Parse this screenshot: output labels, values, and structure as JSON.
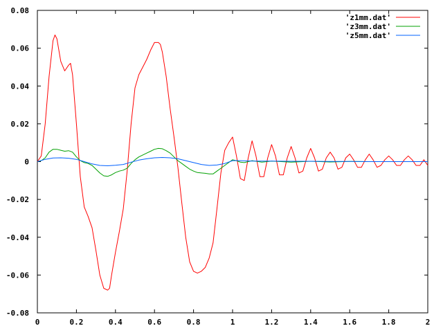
{
  "chart_data": {
    "type": "line",
    "title": "",
    "xlabel": "",
    "ylabel": "",
    "xlim": [
      0,
      2
    ],
    "ylim": [
      -0.08,
      0.08
    ],
    "grid": false,
    "legend_position": "top-right",
    "x_ticks": [
      {
        "value": 0,
        "label": "0"
      },
      {
        "value": 0.2,
        "label": "0.2"
      },
      {
        "value": 0.4,
        "label": "0.4"
      },
      {
        "value": 0.6,
        "label": "0.6"
      },
      {
        "value": 0.8,
        "label": "0.8"
      },
      {
        "value": 1,
        "label": "1"
      },
      {
        "value": 1.2,
        "label": "1.2"
      },
      {
        "value": 1.4,
        "label": "1.4"
      },
      {
        "value": 1.6,
        "label": "1.6"
      },
      {
        "value": 1.8,
        "label": "1.8"
      },
      {
        "value": 2,
        "label": "2"
      }
    ],
    "y_ticks": [
      {
        "value": 0.08,
        "label": "0.08"
      },
      {
        "value": 0.06,
        "label": "0.06"
      },
      {
        "value": 0.04,
        "label": "0.04"
      },
      {
        "value": 0.02,
        "label": "0.02"
      },
      {
        "value": 0,
        "label": "0"
      },
      {
        "value": -0.02,
        "label": "-0.02"
      },
      {
        "value": -0.04,
        "label": "-0.04"
      },
      {
        "value": -0.06,
        "label": "-0.06"
      },
      {
        "value": -0.08,
        "label": "-0.08"
      }
    ],
    "series": [
      {
        "name": "'z1mm.dat'",
        "color": "#ff0000",
        "x": [
          0,
          0.02,
          0.04,
          0.06,
          0.08,
          0.09,
          0.1,
          0.12,
          0.14,
          0.16,
          0.17,
          0.18,
          0.2,
          0.22,
          0.24,
          0.26,
          0.28,
          0.3,
          0.32,
          0.34,
          0.36,
          0.37,
          0.38,
          0.4,
          0.42,
          0.44,
          0.46,
          0.48,
          0.5,
          0.52,
          0.54,
          0.56,
          0.58,
          0.6,
          0.62,
          0.63,
          0.64,
          0.66,
          0.68,
          0.7,
          0.72,
          0.74,
          0.76,
          0.78,
          0.8,
          0.82,
          0.84,
          0.86,
          0.88,
          0.9,
          0.92,
          0.94,
          0.96,
          0.98,
          1.0,
          1.02,
          1.04,
          1.06,
          1.08,
          1.1,
          1.12,
          1.14,
          1.16,
          1.18,
          1.2,
          1.22,
          1.24,
          1.26,
          1.28,
          1.3,
          1.32,
          1.34,
          1.36,
          1.38,
          1.4,
          1.42,
          1.44,
          1.46,
          1.48,
          1.5,
          1.52,
          1.54,
          1.56,
          1.58,
          1.6,
          1.62,
          1.64,
          1.66,
          1.68,
          1.7,
          1.72,
          1.74,
          1.76,
          1.78,
          1.8,
          1.82,
          1.84,
          1.86,
          1.88,
          1.9,
          1.92,
          1.94,
          1.96,
          1.98,
          2.0
        ],
        "y": [
          0,
          0.003,
          0.02,
          0.045,
          0.064,
          0.067,
          0.065,
          0.053,
          0.048,
          0.051,
          0.052,
          0.046,
          0.02,
          -0.008,
          -0.024,
          -0.029,
          -0.035,
          -0.047,
          -0.06,
          -0.067,
          -0.068,
          -0.067,
          -0.06,
          -0.048,
          -0.037,
          -0.025,
          -0.005,
          0.02,
          0.039,
          0.046,
          0.05,
          0.054,
          0.059,
          0.063,
          0.063,
          0.062,
          0.058,
          0.045,
          0.028,
          0.013,
          -0.003,
          -0.022,
          -0.04,
          -0.053,
          -0.058,
          -0.059,
          -0.058,
          -0.056,
          -0.051,
          -0.043,
          -0.025,
          -0.006,
          0.006,
          0.01,
          0.013,
          0.003,
          -0.009,
          -0.01,
          0.002,
          0.011,
          0.003,
          -0.008,
          -0.008,
          0.002,
          0.009,
          0.003,
          -0.007,
          -0.007,
          0.002,
          0.008,
          0.002,
          -0.006,
          -0.005,
          0.002,
          0.007,
          0.002,
          -0.005,
          -0.004,
          0.002,
          0.005,
          0.002,
          -0.004,
          -0.003,
          0.002,
          0.004,
          0.001,
          -0.003,
          -0.003,
          0.001,
          0.004,
          0.001,
          -0.003,
          -0.002,
          0.001,
          0.003,
          0.001,
          -0.002,
          -0.002,
          0.001,
          0.003,
          0.001,
          -0.002,
          -0.002,
          0.001,
          -0.002
        ]
      },
      {
        "name": "'z3mm.dat'",
        "color": "#00a000",
        "x": [
          0,
          0.02,
          0.04,
          0.06,
          0.08,
          0.1,
          0.12,
          0.14,
          0.16,
          0.18,
          0.2,
          0.22,
          0.24,
          0.26,
          0.28,
          0.3,
          0.32,
          0.34,
          0.36,
          0.38,
          0.4,
          0.42,
          0.44,
          0.46,
          0.48,
          0.5,
          0.52,
          0.54,
          0.56,
          0.58,
          0.6,
          0.62,
          0.64,
          0.66,
          0.68,
          0.7,
          0.72,
          0.74,
          0.76,
          0.78,
          0.8,
          0.82,
          0.84,
          0.86,
          0.88,
          0.9,
          0.92,
          0.94,
          0.96,
          0.98,
          1.0,
          1.02,
          1.04,
          1.06,
          1.1,
          1.15,
          1.2,
          1.3,
          1.4,
          1.5,
          1.6,
          1.7,
          1.8,
          1.9,
          2.0
        ],
        "y": [
          0,
          0.0005,
          0.002,
          0.005,
          0.0065,
          0.0065,
          0.006,
          0.0055,
          0.0058,
          0.005,
          0.0025,
          0.0005,
          -0.0005,
          -0.001,
          -0.002,
          -0.004,
          -0.006,
          -0.0075,
          -0.0078,
          -0.007,
          -0.0058,
          -0.005,
          -0.0045,
          -0.0035,
          -0.001,
          0.001,
          0.0025,
          0.0035,
          0.0045,
          0.0055,
          0.0065,
          0.007,
          0.0068,
          0.0058,
          0.0045,
          0.0025,
          0.0005,
          -0.001,
          -0.0025,
          -0.004,
          -0.005,
          -0.0058,
          -0.006,
          -0.0062,
          -0.0065,
          -0.0065,
          -0.005,
          -0.0035,
          -0.002,
          -0.0005,
          0.001,
          0.0005,
          -0.0003,
          -0.0005,
          0.0005,
          -0.0003,
          0.0003,
          -0.0003,
          0.0002,
          -0.0002,
          0.0001,
          0.0,
          0.0,
          0.0,
          0.0
        ]
      },
      {
        "name": "'z5mm.dat'",
        "color": "#0060ff",
        "x": [
          0,
          0.04,
          0.08,
          0.12,
          0.16,
          0.2,
          0.24,
          0.28,
          0.32,
          0.36,
          0.4,
          0.44,
          0.48,
          0.52,
          0.56,
          0.6,
          0.64,
          0.68,
          0.72,
          0.76,
          0.8,
          0.84,
          0.88,
          0.92,
          0.96,
          1.0,
          1.04,
          1.1,
          1.2,
          1.3,
          1.4,
          1.5,
          1.6,
          1.7,
          1.8,
          1.9,
          2.0
        ],
        "y": [
          0,
          0.0012,
          0.0019,
          0.002,
          0.0018,
          0.0012,
          0.0,
          -0.0012,
          -0.002,
          -0.0022,
          -0.0019,
          -0.0015,
          -0.0003,
          0.0008,
          0.0015,
          0.002,
          0.0022,
          0.002,
          0.0015,
          0.0005,
          -0.0005,
          -0.0015,
          -0.002,
          -0.0018,
          -0.001,
          0.0005,
          0.0005,
          0.0003,
          0.0003,
          0.0002,
          0.0002,
          0.0001,
          0.0001,
          0.0,
          0.0,
          0.0,
          0.0
        ]
      }
    ]
  }
}
